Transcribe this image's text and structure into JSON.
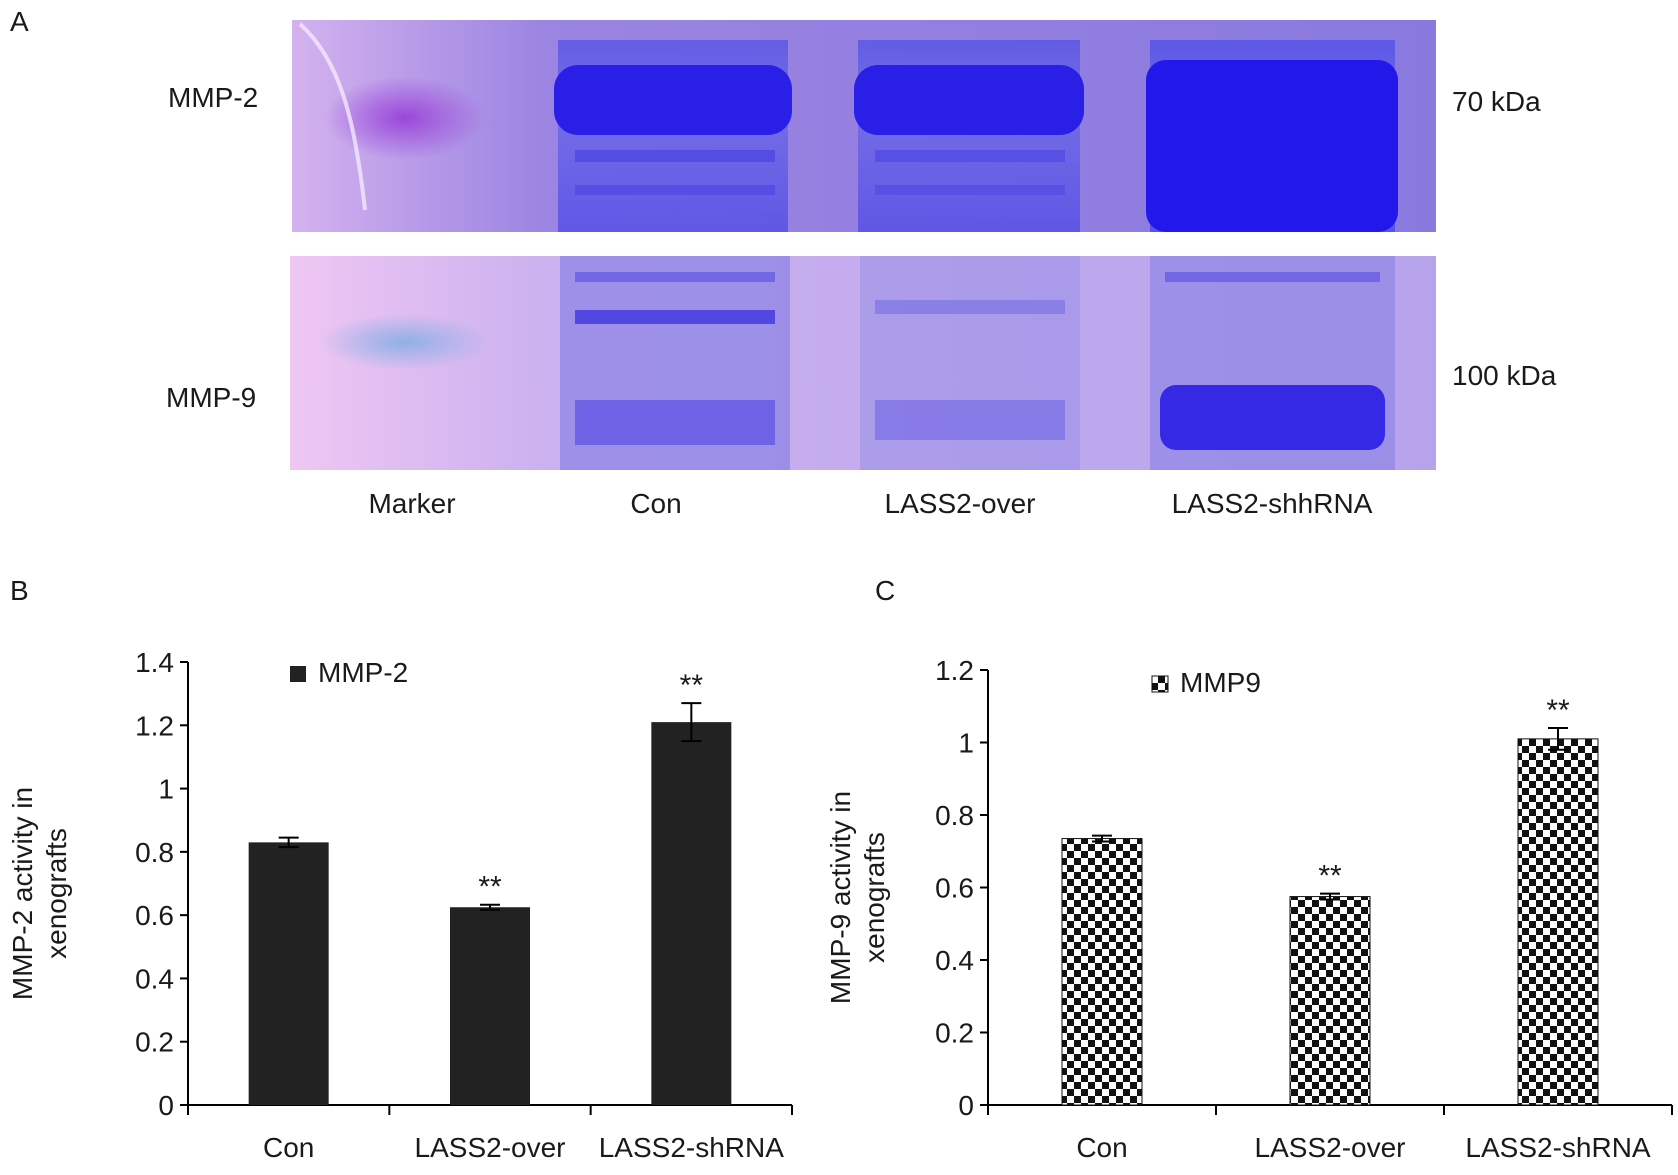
{
  "panel_letters": {
    "a": "A",
    "b": "B",
    "c": "C"
  },
  "gel": {
    "row_labels": [
      "MMP-2",
      "MMP-9"
    ],
    "size_labels": [
      "70 kDa",
      "100 kDa"
    ],
    "lanes": [
      "Marker",
      "Con",
      "LASS2-over",
      "LASS2-shhRNA"
    ],
    "colors": {
      "background_top": "#8e7fe0",
      "background_bottom": "#c9a9ee",
      "band": "#2a1fe6",
      "marker": "#a55bd6"
    }
  },
  "chart_data": [
    {
      "type": "bar",
      "categories": [
        "Con",
        "LASS2-over",
        "LASS2-shRNA"
      ],
      "series": [
        {
          "name": "MMP-2",
          "values": [
            0.83,
            0.625,
            1.21
          ],
          "errors": [
            0.015,
            0.008,
            0.06
          ]
        }
      ],
      "significance": [
        "",
        "**",
        "**"
      ],
      "ylabel": "MMP-2 activity in xenografts",
      "ylim": [
        0,
        1.4
      ],
      "yticks": [
        "0",
        "0.2",
        "0.4",
        "0.6",
        "0.8",
        "1",
        "1.2",
        "1.4"
      ],
      "grid": false,
      "legend": "top-left",
      "color": "#222222"
    },
    {
      "type": "bar",
      "categories": [
        "Con",
        "LASS2-over",
        "LASS2-shRNA"
      ],
      "series": [
        {
          "name": "MMP9",
          "values": [
            0.735,
            0.575,
            1.01
          ],
          "errors": [
            0.008,
            0.008,
            0.03
          ]
        }
      ],
      "significance": [
        "",
        "**",
        "**"
      ],
      "ylabel": "MMP-9 activity in xenografts",
      "ylim": [
        0,
        1.2
      ],
      "yticks": [
        "0",
        "0.2",
        "0.4",
        "0.6",
        "0.8",
        "1",
        "1.2"
      ],
      "grid": false,
      "legend": "top-left",
      "color": "#111111",
      "pattern": "checkerboard"
    }
  ]
}
